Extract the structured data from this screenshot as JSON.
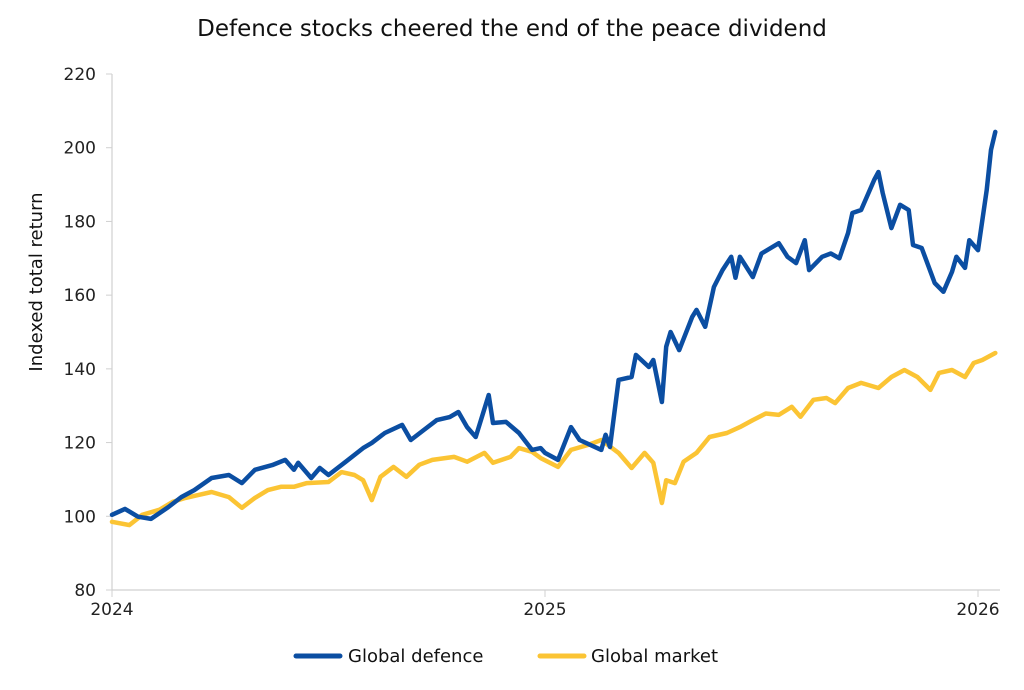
{
  "chart_data": {
    "type": "line",
    "title": "Defence stocks cheered the end of the peace dividend",
    "xlabel": "",
    "ylabel": "Indexed total return",
    "xlim": [
      2024,
      2026.1
    ],
    "ylim": [
      80,
      220
    ],
    "x_ticks": [
      "2024",
      "2025",
      "2026"
    ],
    "y_ticks": [
      "80",
      "100",
      "120",
      "140",
      "160",
      "180",
      "200",
      "220"
    ],
    "grid": false,
    "legend_position": "bottom",
    "series": [
      {
        "name": "Global defence",
        "color": "#0b4ea2",
        "points": [
          [
            2024.0,
            100.4
          ],
          [
            2024.03,
            102
          ],
          [
            2024.06,
            99.9
          ],
          [
            2024.09,
            99.3
          ],
          [
            2024.13,
            102.5
          ],
          [
            2024.16,
            105.2
          ],
          [
            2024.19,
            107.1
          ],
          [
            2024.23,
            110.4
          ],
          [
            2024.27,
            111.2
          ],
          [
            2024.3,
            109
          ],
          [
            2024.33,
            112.6
          ],
          [
            2024.37,
            113.9
          ],
          [
            2024.4,
            115.3
          ],
          [
            2024.42,
            112.6
          ],
          [
            2024.43,
            114.5
          ],
          [
            2024.46,
            110.4
          ],
          [
            2024.48,
            113.1
          ],
          [
            2024.5,
            111.2
          ],
          [
            2024.54,
            114.8
          ],
          [
            2024.58,
            118.5
          ],
          [
            2024.6,
            119.9
          ],
          [
            2024.63,
            122.6
          ],
          [
            2024.67,
            124.8
          ],
          [
            2024.69,
            120.7
          ],
          [
            2024.72,
            123.4
          ],
          [
            2024.75,
            126.1
          ],
          [
            2024.78,
            126.9
          ],
          [
            2024.8,
            128.3
          ],
          [
            2024.82,
            124.2
          ],
          [
            2024.84,
            121.5
          ],
          [
            2024.87,
            132.9
          ],
          [
            2024.88,
            125.3
          ],
          [
            2024.91,
            125.6
          ],
          [
            2024.94,
            122.6
          ],
          [
            2024.97,
            118
          ],
          [
            2024.99,
            118.5
          ],
          [
            2025.0,
            117.2
          ],
          [
            2025.03,
            115.3
          ],
          [
            2025.06,
            124.2
          ],
          [
            2025.08,
            120.7
          ],
          [
            2025.13,
            118
          ],
          [
            2025.14,
            122.1
          ],
          [
            2025.15,
            118.8
          ],
          [
            2025.17,
            137
          ],
          [
            2025.2,
            137.8
          ],
          [
            2025.21,
            143.8
          ],
          [
            2025.24,
            140.5
          ],
          [
            2025.25,
            142.4
          ],
          [
            2025.27,
            131
          ],
          [
            2025.28,
            146
          ],
          [
            2025.29,
            150
          ],
          [
            2025.31,
            145.1
          ],
          [
            2025.34,
            154.1
          ],
          [
            2025.35,
            156
          ],
          [
            2025.37,
            151.4
          ],
          [
            2025.39,
            162.2
          ],
          [
            2025.41,
            166.8
          ],
          [
            2025.43,
            170.4
          ],
          [
            2025.44,
            164.7
          ],
          [
            2025.45,
            170.4
          ],
          [
            2025.48,
            164.9
          ],
          [
            2025.5,
            171.3
          ],
          [
            2025.54,
            174.1
          ],
          [
            2025.56,
            170.4
          ],
          [
            2025.58,
            168.7
          ],
          [
            2025.6,
            174.9
          ],
          [
            2025.61,
            166.8
          ],
          [
            2025.64,
            170.4
          ],
          [
            2025.66,
            171.3
          ],
          [
            2025.68,
            170
          ],
          [
            2025.7,
            176.9
          ],
          [
            2025.71,
            182.3
          ],
          [
            2025.73,
            183.1
          ],
          [
            2025.76,
            191.2
          ],
          [
            2025.77,
            193.4
          ],
          [
            2025.78,
            187.7
          ],
          [
            2025.8,
            178.2
          ],
          [
            2025.82,
            184.5
          ],
          [
            2025.84,
            183.1
          ],
          [
            2025.85,
            173.6
          ],
          [
            2025.87,
            172.8
          ],
          [
            2025.9,
            163.3
          ],
          [
            2025.92,
            160.9
          ],
          [
            2025.94,
            166.3
          ],
          [
            2025.95,
            170.4
          ],
          [
            2025.97,
            167.4
          ],
          [
            2025.98,
            174.9
          ],
          [
            2026.0,
            172.2
          ],
          [
            2026.02,
            188.5
          ],
          [
            2026.03,
            199.4
          ],
          [
            2026.04,
            204.3
          ]
        ]
      },
      {
        "name": "Global market",
        "color": "#fbc434",
        "points": [
          [
            2024.0,
            98.5
          ],
          [
            2024.04,
            97.6
          ],
          [
            2024.07,
            100.4
          ],
          [
            2024.11,
            101.8
          ],
          [
            2024.14,
            103.9
          ],
          [
            2024.17,
            105
          ],
          [
            2024.2,
            105.8
          ],
          [
            2024.23,
            106.6
          ],
          [
            2024.27,
            105.2
          ],
          [
            2024.3,
            102.3
          ],
          [
            2024.33,
            105
          ],
          [
            2024.36,
            107.1
          ],
          [
            2024.39,
            108
          ],
          [
            2024.42,
            108
          ],
          [
            2024.45,
            109
          ],
          [
            2024.5,
            109.3
          ],
          [
            2024.53,
            112
          ],
          [
            2024.56,
            111.2
          ],
          [
            2024.58,
            109.8
          ],
          [
            2024.6,
            104.4
          ],
          [
            2024.62,
            110.7
          ],
          [
            2024.65,
            113.4
          ],
          [
            2024.68,
            110.7
          ],
          [
            2024.71,
            114
          ],
          [
            2024.74,
            115.3
          ],
          [
            2024.79,
            116.1
          ],
          [
            2024.82,
            114.8
          ],
          [
            2024.86,
            117.2
          ],
          [
            2024.88,
            114.5
          ],
          [
            2024.92,
            116.1
          ],
          [
            2024.94,
            118.5
          ],
          [
            2024.97,
            117.5
          ],
          [
            2024.99,
            115.8
          ],
          [
            2025.03,
            113.4
          ],
          [
            2025.06,
            118
          ],
          [
            2025.1,
            119.4
          ],
          [
            2025.13,
            120.7
          ],
          [
            2025.17,
            117.2
          ],
          [
            2025.2,
            113.1
          ],
          [
            2025.23,
            117.2
          ],
          [
            2025.25,
            114.5
          ],
          [
            2025.27,
            103.6
          ],
          [
            2025.28,
            109.8
          ],
          [
            2025.3,
            109
          ],
          [
            2025.32,
            114.8
          ],
          [
            2025.35,
            117.2
          ],
          [
            2025.38,
            121.5
          ],
          [
            2025.42,
            122.6
          ],
          [
            2025.45,
            124.2
          ],
          [
            2025.48,
            126.1
          ],
          [
            2025.51,
            127.9
          ],
          [
            2025.54,
            127.5
          ],
          [
            2025.57,
            129.7
          ],
          [
            2025.59,
            127
          ],
          [
            2025.62,
            131.6
          ],
          [
            2025.65,
            132.1
          ],
          [
            2025.67,
            130.7
          ],
          [
            2025.7,
            134.8
          ],
          [
            2025.73,
            136.2
          ],
          [
            2025.77,
            134.8
          ],
          [
            2025.8,
            137.8
          ],
          [
            2025.83,
            139.7
          ],
          [
            2025.86,
            137.8
          ],
          [
            2025.89,
            134.3
          ],
          [
            2025.91,
            138.9
          ],
          [
            2025.94,
            139.7
          ],
          [
            2025.97,
            137.8
          ],
          [
            2025.99,
            141.6
          ],
          [
            2026.01,
            142.4
          ],
          [
            2026.04,
            144.3
          ]
        ]
      }
    ]
  }
}
